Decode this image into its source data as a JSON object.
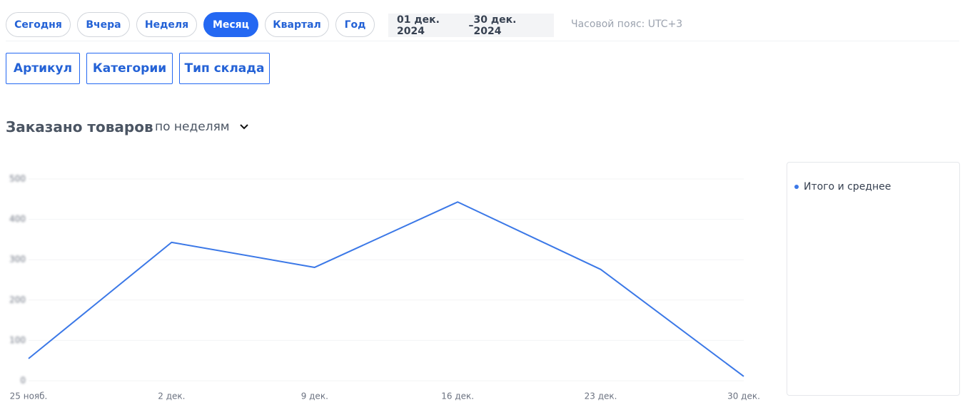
{
  "periods": [
    "Сегодня",
    "Вчера",
    "Неделя",
    "Месяц",
    "Квартал",
    "Год"
  ],
  "active_period": 3,
  "date_from": "01 дек. 2024",
  "date_separator": "–",
  "date_to": "30 дек. 2024",
  "timezone": "Часовой пояс: UTC+3",
  "filters": [
    "Артикул",
    "Категории",
    "Тип склада"
  ],
  "chart_data": {
    "type": "line",
    "title": "Заказано товаров",
    "grouping": "по неделям",
    "categories": [
      "25 нояб.",
      "2 дек.",
      "9 дек.",
      "16 дек.",
      "23 дек.",
      "30 дек."
    ],
    "series": [
      {
        "name": "Итого и среднее",
        "color": "#3b78e7",
        "values": [
          55,
          343,
          281,
          443,
          276,
          11
        ]
      }
    ],
    "ylim": [
      0,
      500
    ],
    "yticks": [
      0,
      100,
      200,
      300,
      400,
      500
    ],
    "grid": true
  }
}
